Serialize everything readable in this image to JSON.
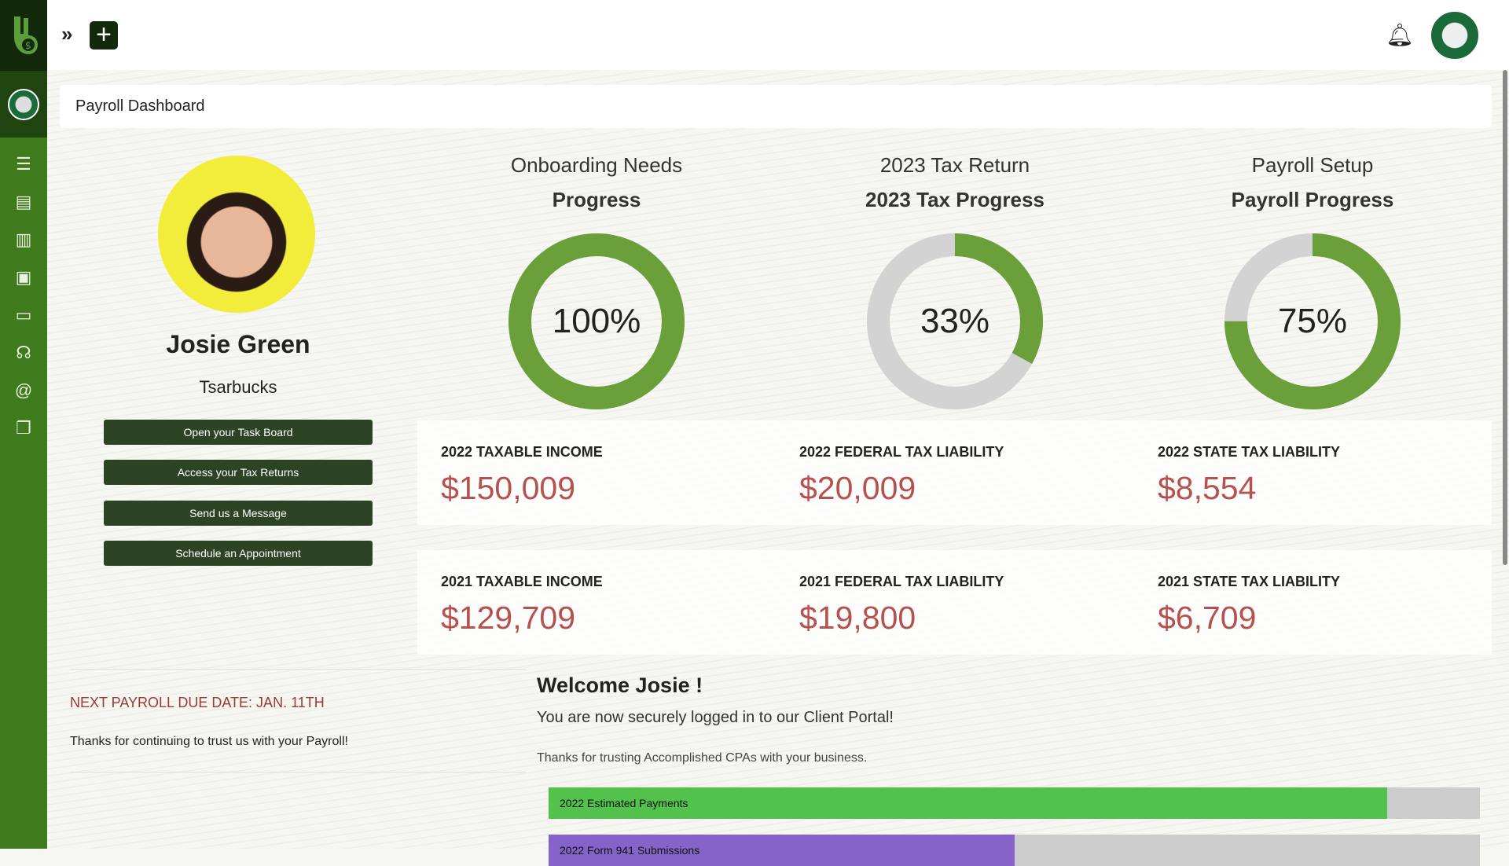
{
  "header": {
    "breadcrumb": "Payroll Dashboard"
  },
  "profile": {
    "name": "Josie Green",
    "company": "Tsarbucks",
    "buttons": [
      "Open your Task Board",
      "Access your Tax Returns",
      "Send us a Message",
      "Schedule an Appointment"
    ]
  },
  "progress": [
    {
      "title": "Onboarding Needs",
      "subtitle": "Progress",
      "percent": 100,
      "label": "100%"
    },
    {
      "title": "2023 Tax Return",
      "subtitle": "2023 Tax Progress",
      "percent": 33,
      "label": "33%"
    },
    {
      "title": "Payroll Setup",
      "subtitle": "Payroll Progress",
      "percent": 75,
      "label": "75%"
    }
  ],
  "stats": [
    [
      {
        "label": "2022 TAXABLE INCOME",
        "value": "$150,009"
      },
      {
        "label": "2022 FEDERAL TAX LIABILITY",
        "value": "$20,009"
      },
      {
        "label": "2022 STATE TAX LIABILITY",
        "value": "$8,554"
      }
    ],
    [
      {
        "label": "2021 TAXABLE INCOME",
        "value": "$129,709"
      },
      {
        "label": "2021 FEDERAL TAX LIABILITY",
        "value": "$19,800"
      },
      {
        "label": "2021 STATE TAX LIABILITY",
        "value": "$6,709"
      }
    ]
  ],
  "payroll": {
    "due": "NEXT PAYROLL DUE DATE: JAN. 11TH",
    "thanks": "Thanks for continuing to trust us with your Payroll!"
  },
  "welcome": {
    "title": "Welcome Josie !",
    "line1": "You are now securely logged in to our Client Portal!",
    "line2": "Thanks for trusting Accomplished CPAs with your business."
  },
  "bars": [
    {
      "label": "2022 Estimated Payments",
      "fraction": 0.9,
      "color": "#52c24d"
    },
    {
      "label": "2022 Form 941 Submissions",
      "fraction": 0.5,
      "color": "#8663c9"
    }
  ],
  "colors": {
    "donut": "#6a9f3a",
    "track": "#d3d3d3"
  }
}
